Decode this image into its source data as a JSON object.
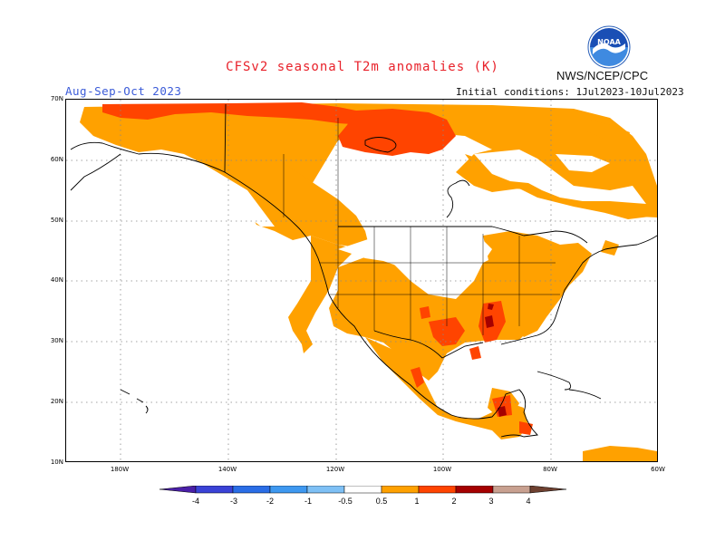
{
  "header": {
    "title": "CFSv2 seasonal T2m anomalies (K)",
    "agency": "NWS/NCEP/CPC",
    "season": "Aug-Sep-Oct 2023",
    "initial_conditions": "Initial conditions: 1Jul2023-10Jul2023",
    "logo_text": "NOAA"
  },
  "map": {
    "lat_labels": [
      "70N",
      "60N",
      "50N",
      "40N",
      "30N",
      "20N",
      "10N"
    ],
    "lon_labels": [
      "180W",
      "140W",
      "120W",
      "100W",
      "80W",
      "60W"
    ],
    "lat_range": [
      10,
      70
    ],
    "lon_range": [
      -190,
      -60
    ],
    "grid": "dotted",
    "colors": {
      "0.5_1": "#ffa100",
      "1_2": "#ff4400",
      "2_3": "#a50000",
      "3_4": "#c8a090",
      "gt4": "#6e4030"
    }
  },
  "legend": {
    "labels": [
      "-4",
      "-3",
      "-2",
      "-1",
      "-0.5",
      "0.5",
      "1",
      "2",
      "3",
      "4"
    ],
    "colors": [
      "#4a1fa8",
      "#3a42d6",
      "#2a6de6",
      "#3e98f0",
      "#7ec0f5",
      "#ffffff",
      "#ffa100",
      "#ff4400",
      "#a50000",
      "#c8a090",
      "#6e4030"
    ]
  }
}
